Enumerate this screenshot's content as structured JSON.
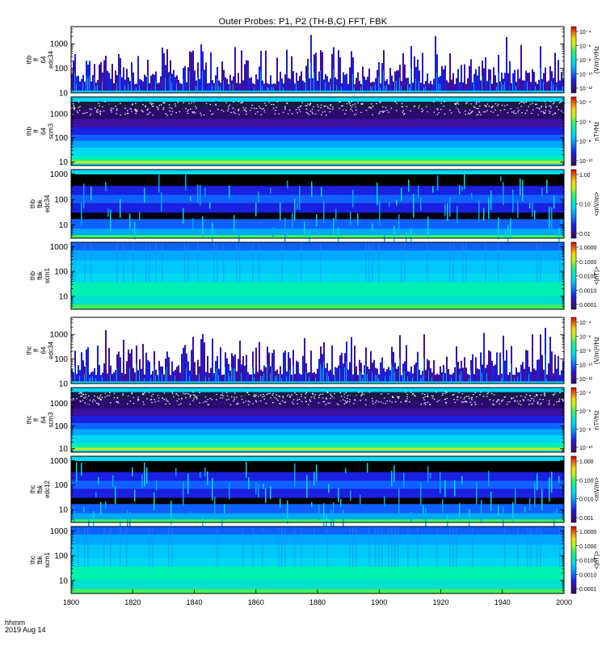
{
  "title": "Outer Probes: P1, P2 (TH-B,C) FFT, FBK",
  "footer": {
    "line1": "hhmm",
    "line2": "2019 Aug 14"
  },
  "chart_data": {
    "type": "heatmap",
    "title": "Outer Probes: P1, P2 (TH-B,C) FFT, FBK",
    "x_ticks": [
      "1800",
      "1820",
      "1840",
      "1860",
      "1880",
      "1900",
      "1920",
      "1940",
      "2000"
    ],
    "x_range": [
      0,
      120
    ],
    "x_unit": "hhmm",
    "y_log": true,
    "panels": [
      {
        "id": "thb-ff-efw",
        "probe": "thb",
        "label_lines": [
          "thb",
          "ff",
          "64",
          "edc34"
        ],
        "y_range": [
          10,
          5000
        ],
        "y_ticks": [
          "10",
          "100",
          "1000"
        ],
        "colorbar_label": "(V/m)²/Hz",
        "colorbar_ticks": [
          "10⁻⁴",
          "10⁻⁶",
          "10⁻⁸",
          "10⁻¹⁰",
          "10⁻¹²"
        ],
        "style": "spiky"
      },
      {
        "id": "thb-ff-scm",
        "probe": "thb",
        "label_lines": [
          "thb",
          "ff",
          "64",
          "scm3"
        ],
        "y_range": [
          7,
          5000
        ],
        "y_ticks": [
          "10",
          "100",
          "1000"
        ],
        "colorbar_label": "nT²/Hz",
        "colorbar_ticks": [
          "10⁻⁴",
          "10⁻⁶",
          "10⁻⁸",
          "10⁻¹⁰"
        ],
        "style": "bands"
      },
      {
        "id": "thb-fb-efw",
        "probe": "thb",
        "label_lines": [
          "thb",
          "fbk",
          "edc34"
        ],
        "y_range": [
          3,
          1500
        ],
        "y_ticks": [
          "10",
          "100",
          "1000"
        ],
        "colorbar_label": "<mV/m>",
        "colorbar_ticks": [
          "1.00",
          "0.10",
          "0.01"
        ],
        "style": "fbk-e"
      },
      {
        "id": "thb-fb-scm",
        "probe": "thb",
        "label_lines": [
          "thb",
          "fbk",
          "scm1"
        ],
        "y_range": [
          3,
          1500
        ],
        "y_ticks": [
          "10",
          "100",
          "1000"
        ],
        "colorbar_label": "<|nT|>",
        "colorbar_ticks": [
          "1.0000",
          "0.1000",
          "0.0100",
          "0.0010",
          "0.0001"
        ],
        "style": "fbk-b"
      },
      {
        "id": "thc-ff-efw",
        "probe": "thc",
        "label_lines": [
          "thc",
          "ff",
          "64",
          "edc34"
        ],
        "y_range": [
          10,
          5000
        ],
        "y_ticks": [
          "10",
          "100",
          "1000"
        ],
        "colorbar_label": "(V/m)²/Hz",
        "colorbar_ticks": [
          "10⁻⁴",
          "10⁻⁶",
          "10⁻⁸",
          "10⁻¹⁰",
          "10⁻¹²"
        ],
        "style": "spiky"
      },
      {
        "id": "thc-ff-scm",
        "probe": "thc",
        "label_lines": [
          "thc",
          "ff",
          "64",
          "scm3"
        ],
        "y_range": [
          7,
          5000
        ],
        "y_ticks": [
          "10",
          "100",
          "1000"
        ],
        "colorbar_label": "nT²/Hz",
        "colorbar_ticks": [
          "10⁻⁴",
          "10⁻⁶",
          "10⁻⁸",
          "10⁻¹⁰"
        ],
        "style": "bands"
      },
      {
        "id": "thc-fb-efw",
        "probe": "thc",
        "label_lines": [
          "thc",
          "fbk",
          "edc12"
        ],
        "y_range": [
          3,
          1500
        ],
        "y_ticks": [
          "10",
          "100",
          "1000"
        ],
        "colorbar_label": "<mV/m>",
        "colorbar_ticks": [
          "1.000",
          "0.100",
          "0.010",
          "0.001"
        ],
        "style": "fbk-e"
      },
      {
        "id": "thc-fb-scm",
        "probe": "thc",
        "label_lines": [
          "thc",
          "fbk",
          "scm1"
        ],
        "y_range": [
          3,
          1500
        ],
        "y_ticks": [
          "10",
          "100",
          "1000"
        ],
        "colorbar_label": "<|nT|>",
        "colorbar_ticks": [
          "1.0000",
          "0.1000",
          "0.0100",
          "0.0010",
          "0.0001"
        ],
        "style": "fbk-b"
      }
    ]
  }
}
